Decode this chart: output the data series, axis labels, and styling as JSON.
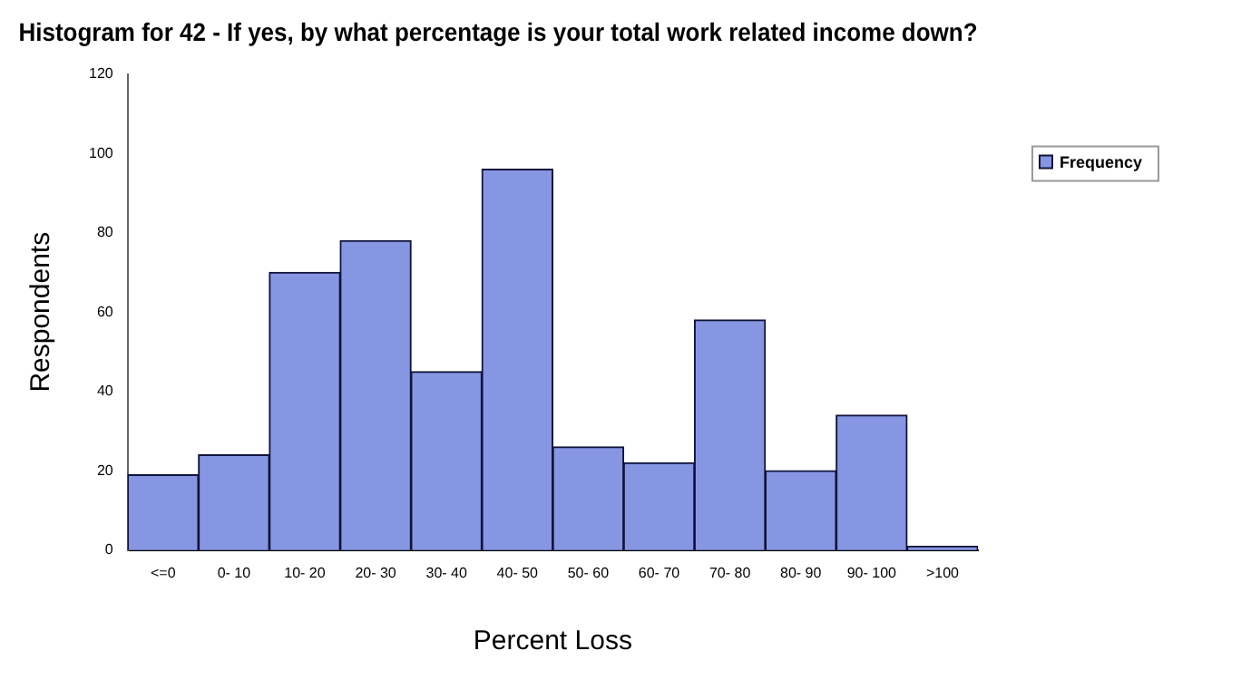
{
  "chart_data": {
    "type": "bar",
    "title": "Histogram for 42 - If yes, by what percentage is your total work related income down?",
    "xlabel": "Percent Loss",
    "ylabel": "Respondents",
    "categories": [
      "<=0",
      "0- 10",
      "10- 20",
      "20- 30",
      "30- 40",
      "40- 50",
      "50- 60",
      "60- 70",
      "70- 80",
      "80- 90",
      "90- 100",
      ">100"
    ],
    "series": [
      {
        "name": "Frequency",
        "color": "#8796e2",
        "values": [
          19,
          24,
          70,
          78,
          45,
          96,
          26,
          22,
          58,
          20,
          34,
          1
        ]
      }
    ],
    "ylim": [
      0,
      120
    ],
    "yticks": [
      0,
      20,
      40,
      60,
      80,
      100,
      120
    ],
    "grid": false,
    "legend": "right top"
  }
}
